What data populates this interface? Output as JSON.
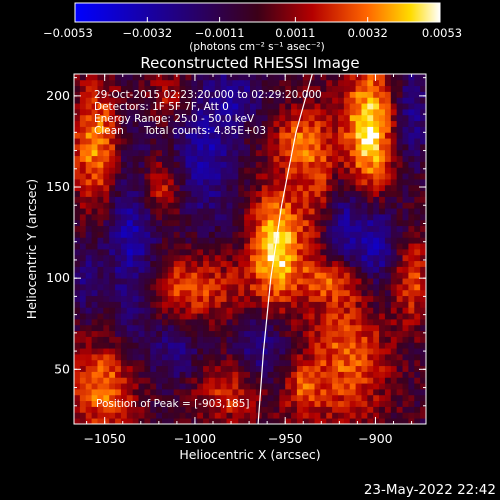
{
  "chart_data": {
    "type": "heatmap",
    "title": "Reconstructed RHESSI Image",
    "xlabel": "Heliocentric X (arcsec)",
    "ylabel": "Heliocentric Y (arcsec)",
    "xlim": [
      -1067,
      -872
    ],
    "ylim": [
      20,
      212
    ],
    "x_ticks": [
      {
        "value": -1050,
        "label": "−1050"
      },
      {
        "value": -1000,
        "label": "−1000"
      },
      {
        "value": -950,
        "label": "−950"
      },
      {
        "value": -900,
        "label": "−900"
      }
    ],
    "y_ticks": [
      {
        "value": 50,
        "label": "50"
      },
      {
        "value": 100,
        "label": "100"
      },
      {
        "value": 150,
        "label": "150"
      },
      {
        "value": 200,
        "label": "200"
      }
    ],
    "colorbar": {
      "range": [
        -0.0053,
        0.0053
      ],
      "ticks": [
        {
          "value": -0.0053,
          "label": "−0.0053"
        },
        {
          "value": -0.0032,
          "label": "−0.0032"
        },
        {
          "value": -0.0011,
          "label": "−0.0011"
        },
        {
          "value": 0.0011,
          "label": "0.0011"
        },
        {
          "value": 0.0032,
          "label": "0.0032"
        },
        {
          "value": 0.0053,
          "label": "0.0053"
        }
      ],
      "units_label": "(photons cm⁻² s⁻¹ asec⁻²)"
    },
    "annotations": [
      "29-Oct-2015 02:23:20.000 to 02:29:20.000",
      "Detectors: 1F 5F 7F, Att 0",
      "Energy Range: 25.0 - 50.0 keV",
      "Clean",
      "Total counts: 4.85E+03"
    ],
    "peak": {
      "x": -903,
      "y": 185
    },
    "peak_label": "Position of Peak = [-903,185]",
    "sources": [
      {
        "x": -955,
        "y": 118,
        "sigma_x": 10,
        "sigma_y": 22,
        "amp": 1.0
      },
      {
        "x": -904,
        "y": 180,
        "sigma_x": 10,
        "sigma_y": 26,
        "amp": 1.0
      },
      {
        "x": -1054,
        "y": 173,
        "sigma_x": 10,
        "sigma_y": 24,
        "amp": 0.75
      },
      {
        "x": -1020,
        "y": 150,
        "sigma_x": 9,
        "sigma_y": 12,
        "amp": 0.55
      },
      {
        "x": -1003,
        "y": 95,
        "sigma_x": 22,
        "sigma_y": 14,
        "amp": 0.55
      },
      {
        "x": -1050,
        "y": 40,
        "sigma_x": 13,
        "sigma_y": 18,
        "amp": 0.7
      },
      {
        "x": -930,
        "y": 150,
        "sigma_x": 8,
        "sigma_y": 30,
        "amp": 0.55
      },
      {
        "x": -945,
        "y": 175,
        "sigma_x": 9,
        "sigma_y": 12,
        "amp": 0.55
      },
      {
        "x": -980,
        "y": 40,
        "sigma_x": 14,
        "sigma_y": 14,
        "amp": 0.5
      },
      {
        "x": -915,
        "y": 60,
        "sigma_x": 16,
        "sigma_y": 30,
        "amp": 0.6
      },
      {
        "x": -880,
        "y": 100,
        "sigma_x": 8,
        "sigma_y": 16,
        "amp": 0.55
      },
      {
        "x": -920,
        "y": 100,
        "sigma_x": 14,
        "sigma_y": 8,
        "amp": 0.5
      },
      {
        "x": -1012,
        "y": 200,
        "sigma_x": 10,
        "sigma_y": 10,
        "amp": 0.45
      },
      {
        "x": -940,
        "y": 40,
        "sigma_x": 8,
        "sigma_y": 12,
        "amp": 0.45
      }
    ],
    "sinks": [
      {
        "x": -1035,
        "y": 120,
        "sigma_x": 10,
        "sigma_y": 40,
        "amp": -0.6
      },
      {
        "x": -995,
        "y": 170,
        "sigma_x": 12,
        "sigma_y": 28,
        "amp": -0.55
      },
      {
        "x": -920,
        "y": 130,
        "sigma_x": 9,
        "sigma_y": 22,
        "amp": -0.6
      },
      {
        "x": -900,
        "y": 115,
        "sigma_x": 10,
        "sigma_y": 20,
        "amp": -0.65
      },
      {
        "x": -965,
        "y": 60,
        "sigma_x": 12,
        "sigma_y": 14,
        "amp": -0.5
      },
      {
        "x": -1010,
        "y": 60,
        "sigma_x": 10,
        "sigma_y": 12,
        "amp": -0.4
      },
      {
        "x": -880,
        "y": 190,
        "sigma_x": 6,
        "sigma_y": 20,
        "amp": -0.45
      },
      {
        "x": -975,
        "y": 200,
        "sigma_x": 10,
        "sigma_y": 10,
        "amp": -0.4
      },
      {
        "x": -1060,
        "y": 100,
        "sigma_x": 6,
        "sigma_y": 14,
        "amp": -0.35
      }
    ],
    "limb_curve": [
      {
        "x": -965,
        "y": 20
      },
      {
        "x": -962,
        "y": 60
      },
      {
        "x": -958,
        "y": 100
      },
      {
        "x": -952,
        "y": 140
      },
      {
        "x": -944,
        "y": 180
      },
      {
        "x": -935,
        "y": 212
      }
    ]
  },
  "timestamp": "23-May-2022 22:42"
}
